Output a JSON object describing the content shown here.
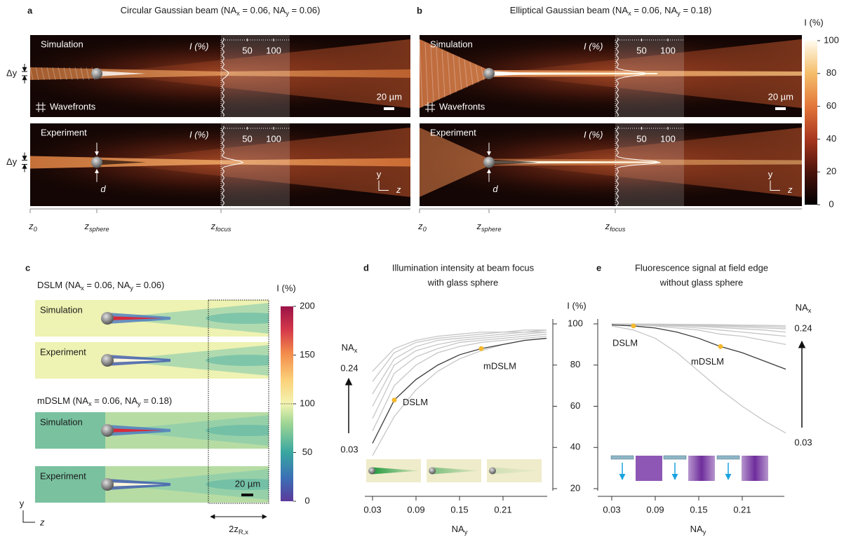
{
  "panels": {
    "a": {
      "label": "a",
      "title": [
        "Circular Gaussian beam (NA",
        "x",
        " = 0.06, NA",
        "y",
        " = 0.06)"
      ],
      "simulation": {
        "name": "Simulation",
        "profile_label": "I (%)",
        "profile_ticks": [
          50,
          100
        ],
        "scale_bar": "20 µm",
        "wavefronts": "Wavefronts",
        "offset": "Δy"
      },
      "experiment": {
        "name": "Experiment",
        "profile_label": "I (%)",
        "profile_ticks": [
          50,
          100
        ],
        "offset": "Δy",
        "diameter": "d",
        "axes": [
          "y",
          "z"
        ]
      },
      "positions": [
        [
          "z",
          "0"
        ],
        [
          "z",
          "sphere"
        ],
        [
          "z",
          "focus"
        ]
      ]
    },
    "b": {
      "label": "b",
      "title": [
        "Elliptical Gaussian beam (NA",
        "x",
        " = 0.06, NA",
        "y",
        " = 0.18)"
      ],
      "simulation": {
        "name": "Simulation",
        "profile_label": "I (%)",
        "profile_ticks": [
          50,
          100
        ],
        "scale_bar": "20 µm",
        "wavefronts": "Wavefronts"
      },
      "experiment": {
        "name": "Experiment",
        "profile_label": "I (%)",
        "profile_ticks": [
          50,
          100
        ],
        "diameter": "d",
        "axes": [
          "y",
          "z"
        ]
      },
      "positions": [
        [
          "z",
          "0"
        ],
        [
          "z",
          "sphere"
        ],
        [
          "z",
          "focus"
        ]
      ]
    },
    "c": {
      "label": "c",
      "groups": [
        {
          "title": [
            "DSLM (NA",
            "x",
            " = 0.06, NA",
            "y",
            " = 0.06)"
          ],
          "simulation": "Simulation",
          "experiment": "Experiment"
        },
        {
          "title": [
            "mDSLM (NA",
            "x",
            " = 0.06, NA",
            "y",
            " = 0.18)"
          ],
          "simulation": "Simulation",
          "experiment": "Experiment"
        }
      ],
      "scale_bar": "20 µm",
      "range_label": [
        "2z",
        "R,x"
      ],
      "axes": [
        "y",
        "z"
      ]
    }
  },
  "colorbars": {
    "beam": {
      "label": "I (%)",
      "lim": [
        0,
        100
      ],
      "ticks": [
        0,
        20,
        40,
        60,
        80,
        100
      ]
    },
    "ratio": {
      "label": "I (%)",
      "lim": [
        0,
        200
      ],
      "ticks": [
        0,
        50,
        100,
        150,
        200
      ]
    }
  },
  "chart_data": [
    {
      "type": "line",
      "label": "d",
      "title": [
        "Illumination intensity at beam focus",
        "with glass sphere"
      ],
      "xlabel": [
        "NA",
        "y"
      ],
      "ylabel": "I (%)",
      "x": [
        0.03,
        0.06,
        0.09,
        0.12,
        0.15,
        0.18,
        0.21,
        0.24,
        0.27
      ],
      "xlim": [
        0.01,
        0.27
      ],
      "xticks": [
        0.03,
        0.09,
        0.15,
        0.21
      ],
      "ylim": [
        20,
        100
      ],
      "yticks": [
        20,
        40,
        60,
        80,
        100
      ],
      "series": [
        {
          "color": "#c6c6c6",
          "values": [
            36,
            55,
            68,
            77,
            83,
            87,
            90,
            92,
            93
          ]
        },
        {
          "color": "#c6c6c6",
          "values": [
            48,
            70,
            80,
            86,
            89,
            91,
            92,
            93,
            94
          ]
        },
        {
          "color": "#c6c6c6",
          "values": [
            54,
            76,
            84,
            88,
            91,
            92,
            93,
            94,
            95
          ]
        },
        {
          "color": "#c6c6c6",
          "values": [
            60,
            80,
            87,
            90,
            92,
            93,
            94,
            95,
            96
          ]
        },
        {
          "color": "#c6c6c6",
          "values": [
            66,
            83,
            89,
            92,
            93,
            94,
            95,
            96,
            96
          ]
        },
        {
          "color": "#c6c6c6",
          "values": [
            72,
            86,
            91,
            93,
            94,
            95,
            96,
            96,
            97
          ]
        },
        {
          "color": "#c6c6c6",
          "values": [
            77,
            88,
            92,
            94,
            95,
            96,
            96,
            97,
            97
          ]
        },
        {
          "color": "#3a3a3a",
          "values": [
            42,
            63,
            73,
            80,
            85,
            88,
            90,
            92,
            93
          ]
        }
      ],
      "markers": [
        {
          "label": "DSLM",
          "x": 0.06,
          "y": 63,
          "color": "#f5b82e"
        },
        {
          "label": "mDSLM",
          "x": 0.18,
          "y": 88,
          "color": "#f5b82e"
        }
      ],
      "annotation": {
        "name": [
          "NA",
          "x"
        ],
        "to": "0.24",
        "from": "0.03"
      }
    },
    {
      "type": "line",
      "label": "e",
      "title": [
        "Fluorescence signal at field edge",
        "without glass sphere"
      ],
      "xlabel": [
        "NA",
        "y"
      ],
      "x": [
        0.03,
        0.06,
        0.09,
        0.12,
        0.15,
        0.18,
        0.21,
        0.24,
        0.27
      ],
      "xlim": [
        0.01,
        0.27
      ],
      "xticks": [
        0.03,
        0.09,
        0.15,
        0.21
      ],
      "ylim": [
        20,
        100
      ],
      "yticks": [
        20,
        40,
        60,
        80,
        100
      ],
      "series": [
        {
          "color": "#c6c6c6",
          "values": [
            99,
            97,
            93,
            86,
            77,
            68,
            60,
            53,
            47
          ]
        },
        {
          "color": "#c6c6c6",
          "values": [
            100,
            99.5,
            99,
            98,
            97,
            95,
            94,
            92,
            90
          ]
        },
        {
          "color": "#c6c6c6",
          "values": [
            100,
            99.6,
            99.3,
            98.8,
            98,
            97,
            96,
            95,
            94
          ]
        },
        {
          "color": "#c6c6c6",
          "values": [
            100,
            99.7,
            99.5,
            99.2,
            98.8,
            98.2,
            97.6,
            97,
            96
          ]
        },
        {
          "color": "#c6c6c6",
          "values": [
            100,
            99.8,
            99.6,
            99.4,
            99.1,
            98.8,
            98.4,
            98,
            97.6
          ]
        },
        {
          "color": "#c6c6c6",
          "values": [
            100,
            99.9,
            99.8,
            99.6,
            99.4,
            99.2,
            99,
            98.7,
            98.4
          ]
        },
        {
          "color": "#c6c6c6",
          "values": [
            100,
            99.9,
            99.9,
            99.8,
            99.7,
            99.6,
            99.4,
            99.3,
            99.1
          ]
        },
        {
          "color": "#3a3a3a",
          "values": [
            99.5,
            99,
            98,
            96,
            93,
            89,
            86,
            82,
            78
          ]
        }
      ],
      "markers": [
        {
          "label": "DSLM",
          "x": 0.06,
          "y": 99,
          "color": "#f5b82e"
        },
        {
          "label": "mDSLM",
          "x": 0.18,
          "y": 89,
          "color": "#f5b82e"
        }
      ],
      "annotation": {
        "name": [
          "NA",
          "x"
        ],
        "to": "0.24",
        "from": "0.03"
      }
    }
  ]
}
